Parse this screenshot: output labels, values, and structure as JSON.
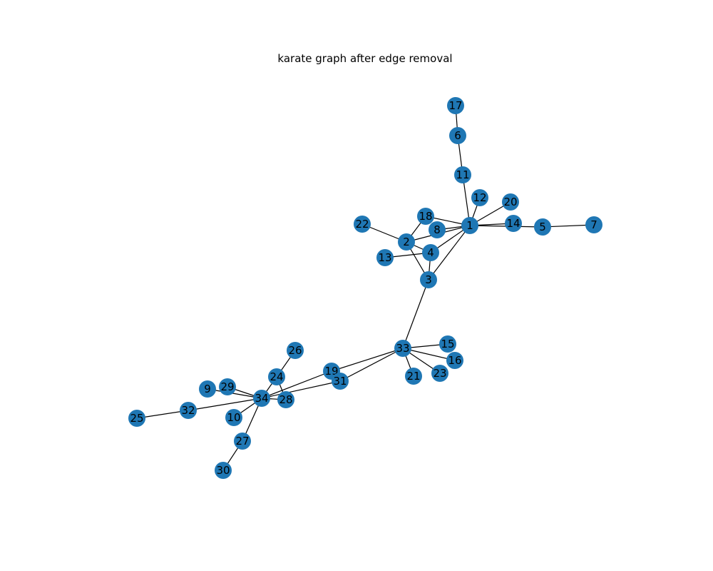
{
  "figure": {
    "title": "karate graph after edge removal"
  },
  "colors": {
    "node": "#1f77b4",
    "edge": "#000000",
    "label": "#000000",
    "background": "#ffffff"
  },
  "graph": {
    "nodes": [
      "1",
      "2",
      "3",
      "4",
      "5",
      "6",
      "7",
      "8",
      "9",
      "10",
      "11",
      "12",
      "13",
      "14",
      "15",
      "16",
      "17",
      "18",
      "19",
      "20",
      "21",
      "22",
      "23",
      "24",
      "25",
      "26",
      "27",
      "28",
      "29",
      "30",
      "31",
      "32",
      "33",
      "34"
    ],
    "edges": [
      [
        "1",
        "2"
      ],
      [
        "1",
        "3"
      ],
      [
        "1",
        "4"
      ],
      [
        "1",
        "5"
      ],
      [
        "1",
        "8"
      ],
      [
        "1",
        "11"
      ],
      [
        "1",
        "12"
      ],
      [
        "1",
        "14"
      ],
      [
        "1",
        "18"
      ],
      [
        "1",
        "20"
      ],
      [
        "2",
        "3"
      ],
      [
        "2",
        "4"
      ],
      [
        "2",
        "18"
      ],
      [
        "2",
        "22"
      ],
      [
        "3",
        "4"
      ],
      [
        "3",
        "33"
      ],
      [
        "4",
        "13"
      ],
      [
        "5",
        "7"
      ],
      [
        "6",
        "11"
      ],
      [
        "6",
        "17"
      ],
      [
        "19",
        "33"
      ],
      [
        "15",
        "33"
      ],
      [
        "16",
        "33"
      ],
      [
        "21",
        "33"
      ],
      [
        "23",
        "33"
      ],
      [
        "31",
        "33"
      ],
      [
        "9",
        "34"
      ],
      [
        "10",
        "34"
      ],
      [
        "19",
        "34"
      ],
      [
        "24",
        "34"
      ],
      [
        "27",
        "34"
      ],
      [
        "28",
        "34"
      ],
      [
        "29",
        "34"
      ],
      [
        "31",
        "34"
      ],
      [
        "32",
        "34"
      ],
      [
        "24",
        "26"
      ],
      [
        "24",
        "28"
      ],
      [
        "25",
        "32"
      ],
      [
        "27",
        "30"
      ]
    ]
  }
}
